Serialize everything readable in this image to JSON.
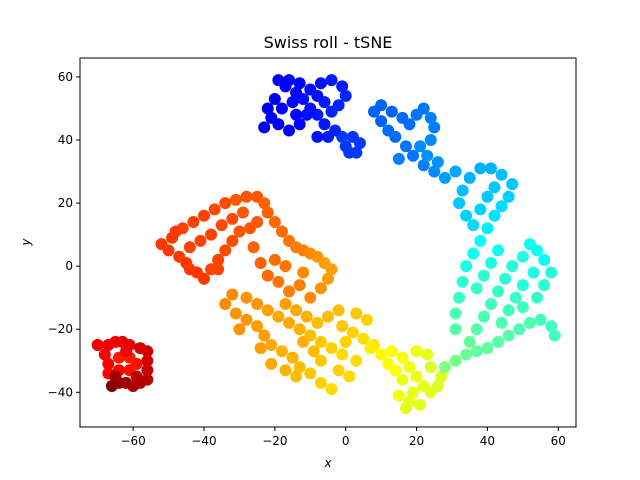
{
  "chart_data": {
    "type": "scatter",
    "title": "Swiss roll - tSNE",
    "xlabel": "x",
    "ylabel": "y",
    "xlim": [
      -75,
      65
    ],
    "ylim": [
      -51,
      66
    ],
    "xticks": [
      -60,
      -40,
      -20,
      0,
      20,
      40,
      60
    ],
    "yticks": [
      -40,
      -20,
      0,
      20,
      40,
      60
    ],
    "xtick_labels": [
      "−60",
      "−40",
      "−20",
      "0",
      "20",
      "40",
      "60"
    ],
    "ytick_labels": [
      "−40",
      "−20",
      "0",
      "20",
      "40",
      "60"
    ],
    "grid": false,
    "legend": "none",
    "colormap": "jet",
    "marker_color_scale": [
      0,
      1
    ],
    "points": [
      {
        "x": -66,
        "y": -38,
        "c": 0.0
      },
      {
        "x": -64,
        "y": -37,
        "c": 0.02
      },
      {
        "x": -62,
        "y": -37,
        "c": 0.03
      },
      {
        "x": -60,
        "y": -38,
        "c": 0.04
      },
      {
        "x": -58,
        "y": -37,
        "c": 0.05
      },
      {
        "x": -56,
        "y": -36,
        "c": 0.06
      },
      {
        "x": -56,
        "y": -33,
        "c": 0.07
      },
      {
        "x": -56,
        "y": -30,
        "c": 0.08
      },
      {
        "x": -56,
        "y": -27,
        "c": 0.08
      },
      {
        "x": -58,
        "y": -26,
        "c": 0.09
      },
      {
        "x": -61,
        "y": -25,
        "c": 0.1
      },
      {
        "x": -63,
        "y": -24,
        "c": 0.1
      },
      {
        "x": -65,
        "y": -24,
        "c": 0.11
      },
      {
        "x": -67,
        "y": -25,
        "c": 0.11
      },
      {
        "x": -70,
        "y": -25,
        "c": 0.11
      },
      {
        "x": -68,
        "y": -28,
        "c": 0.12
      },
      {
        "x": -67,
        "y": -31,
        "c": 0.12
      },
      {
        "x": -67,
        "y": -34,
        "c": 0.13
      },
      {
        "x": -64,
        "y": -33,
        "c": 0.13
      },
      {
        "x": -61,
        "y": -33,
        "c": 0.14
      },
      {
        "x": -59,
        "y": -31,
        "c": 0.14
      },
      {
        "x": -61,
        "y": -29,
        "c": 0.15
      },
      {
        "x": -64,
        "y": -29,
        "c": 0.15
      },
      {
        "x": -59,
        "y": -35,
        "c": 0.06
      },
      {
        "x": -65,
        "y": -35,
        "c": 0.03
      },
      {
        "x": -62,
        "y": -27,
        "c": 0.12
      },
      {
        "x": -52,
        "y": 7,
        "c": 0.18
      },
      {
        "x": -49,
        "y": 9,
        "c": 0.18
      },
      {
        "x": -46,
        "y": 12,
        "c": 0.19
      },
      {
        "x": -43,
        "y": 14,
        "c": 0.19
      },
      {
        "x": -40,
        "y": 16,
        "c": 0.19
      },
      {
        "x": -37,
        "y": 18,
        "c": 0.2
      },
      {
        "x": -34,
        "y": 20,
        "c": 0.2
      },
      {
        "x": -31,
        "y": 21,
        "c": 0.21
      },
      {
        "x": -28,
        "y": 22,
        "c": 0.21
      },
      {
        "x": -25,
        "y": 22,
        "c": 0.21
      },
      {
        "x": -23,
        "y": 20,
        "c": 0.22
      },
      {
        "x": -22,
        "y": 17,
        "c": 0.22
      },
      {
        "x": -20,
        "y": 14,
        "c": 0.23
      },
      {
        "x": -18,
        "y": 11,
        "c": 0.23
      },
      {
        "x": -16,
        "y": 8,
        "c": 0.24
      },
      {
        "x": -14,
        "y": 6,
        "c": 0.25
      },
      {
        "x": -12,
        "y": 5,
        "c": 0.25
      },
      {
        "x": -10,
        "y": 4,
        "c": 0.26
      },
      {
        "x": -8,
        "y": 3,
        "c": 0.27
      },
      {
        "x": -6,
        "y": 1,
        "c": 0.28
      },
      {
        "x": -4,
        "y": -1,
        "c": 0.28
      },
      {
        "x": -50,
        "y": 5,
        "c": 0.18
      },
      {
        "x": -47,
        "y": 3,
        "c": 0.18
      },
      {
        "x": -45,
        "y": 1,
        "c": 0.18
      },
      {
        "x": -42,
        "y": -2,
        "c": 0.18
      },
      {
        "x": -40,
        "y": -4,
        "c": 0.18
      },
      {
        "x": -38,
        "y": -1,
        "c": 0.19
      },
      {
        "x": -36,
        "y": 2,
        "c": 0.19
      },
      {
        "x": -34,
        "y": 5,
        "c": 0.2
      },
      {
        "x": -32,
        "y": 8,
        "c": 0.2
      },
      {
        "x": -30,
        "y": 11,
        "c": 0.21
      },
      {
        "x": -27,
        "y": 12,
        "c": 0.21
      },
      {
        "x": -25,
        "y": 14,
        "c": 0.21
      },
      {
        "x": -38,
        "y": 10,
        "c": 0.19
      },
      {
        "x": -41,
        "y": 8,
        "c": 0.19
      },
      {
        "x": -44,
        "y": 6,
        "c": 0.19
      },
      {
        "x": -35,
        "y": 13,
        "c": 0.2
      },
      {
        "x": -29,
        "y": 17,
        "c": 0.21
      },
      {
        "x": -32,
        "y": 15,
        "c": 0.2
      },
      {
        "x": -36,
        "y": -1,
        "c": 0.19
      },
      {
        "x": -44,
        "y": -1,
        "c": 0.18
      },
      {
        "x": -48,
        "y": 11,
        "c": 0.18
      },
      {
        "x": -26,
        "y": 6,
        "c": 0.22
      },
      {
        "x": -24,
        "y": 1,
        "c": 0.22
      },
      {
        "x": -22,
        "y": -3,
        "c": 0.23
      },
      {
        "x": -20,
        "y": 2,
        "c": 0.23
      },
      {
        "x": -17,
        "y": 0,
        "c": 0.24
      },
      {
        "x": -19,
        "y": -5,
        "c": 0.24
      },
      {
        "x": -16,
        "y": -8,
        "c": 0.25
      },
      {
        "x": -13,
        "y": -6,
        "c": 0.25
      },
      {
        "x": -12,
        "y": -2,
        "c": 0.26
      },
      {
        "x": -10,
        "y": -10,
        "c": 0.26
      },
      {
        "x": -7,
        "y": -7,
        "c": 0.27
      },
      {
        "x": -5,
        "y": -4,
        "c": 0.28
      },
      {
        "x": -34,
        "y": -12,
        "c": 0.26
      },
      {
        "x": -31,
        "y": -15,
        "c": 0.27
      },
      {
        "x": -28,
        "y": -17,
        "c": 0.27
      },
      {
        "x": -25,
        "y": -19,
        "c": 0.28
      },
      {
        "x": -23,
        "y": -22,
        "c": 0.28
      },
      {
        "x": -21,
        "y": -25,
        "c": 0.29
      },
      {
        "x": -18,
        "y": -27,
        "c": 0.3
      },
      {
        "x": -15,
        "y": -29,
        "c": 0.3
      },
      {
        "x": -13,
        "y": -32,
        "c": 0.31
      },
      {
        "x": -10,
        "y": -34,
        "c": 0.32
      },
      {
        "x": -7,
        "y": -37,
        "c": 0.33
      },
      {
        "x": -4,
        "y": -39,
        "c": 0.34
      },
      {
        "x": -32,
        "y": -9,
        "c": 0.26
      },
      {
        "x": -28,
        "y": -10,
        "c": 0.27
      },
      {
        "x": -25,
        "y": -12,
        "c": 0.27
      },
      {
        "x": -22,
        "y": -14,
        "c": 0.28
      },
      {
        "x": -19,
        "y": -16,
        "c": 0.29
      },
      {
        "x": -16,
        "y": -18,
        "c": 0.29
      },
      {
        "x": -13,
        "y": -20,
        "c": 0.3
      },
      {
        "x": -10,
        "y": -22,
        "c": 0.31
      },
      {
        "x": -7,
        "y": -24,
        "c": 0.32
      },
      {
        "x": -4,
        "y": -26,
        "c": 0.33
      },
      {
        "x": -1,
        "y": -28,
        "c": 0.34
      },
      {
        "x": -17,
        "y": -12,
        "c": 0.28
      },
      {
        "x": -14,
        "y": -14,
        "c": 0.29
      },
      {
        "x": -11,
        "y": -16,
        "c": 0.3
      },
      {
        "x": -8,
        "y": -18,
        "c": 0.31
      },
      {
        "x": -5,
        "y": -16,
        "c": 0.31
      },
      {
        "x": -2,
        "y": -14,
        "c": 0.31
      },
      {
        "x": -1,
        "y": -19,
        "c": 0.32
      },
      {
        "x": 2,
        "y": -21,
        "c": 0.33
      },
      {
        "x": 5,
        "y": -23,
        "c": 0.34
      },
      {
        "x": 8,
        "y": -25,
        "c": 0.35
      },
      {
        "x": 3,
        "y": -15,
        "c": 0.32
      },
      {
        "x": 6,
        "y": -17,
        "c": 0.33
      },
      {
        "x": -21,
        "y": -31,
        "c": 0.29
      },
      {
        "x": -17,
        "y": -33,
        "c": 0.3
      },
      {
        "x": -14,
        "y": -35,
        "c": 0.31
      },
      {
        "x": -24,
        "y": -26,
        "c": 0.28
      },
      {
        "x": -30,
        "y": -20,
        "c": 0.27
      },
      {
        "x": -7,
        "y": -30,
        "c": 0.32
      },
      {
        "x": -2,
        "y": -33,
        "c": 0.33
      },
      {
        "x": 1,
        "y": -35,
        "c": 0.34
      },
      {
        "x": 3,
        "y": -30,
        "c": 0.34
      },
      {
        "x": 0,
        "y": -24,
        "c": 0.33
      },
      {
        "x": -9,
        "y": -27,
        "c": 0.31
      },
      {
        "x": -12,
        "y": -24,
        "c": 0.3
      },
      {
        "x": 7,
        "y": -26,
        "c": 0.36
      },
      {
        "x": 10,
        "y": -28,
        "c": 0.37
      },
      {
        "x": 13,
        "y": -27,
        "c": 0.38
      },
      {
        "x": 16,
        "y": -29,
        "c": 0.38
      },
      {
        "x": 18,
        "y": -32,
        "c": 0.39
      },
      {
        "x": 20,
        "y": -35,
        "c": 0.39
      },
      {
        "x": 22,
        "y": -38,
        "c": 0.4
      },
      {
        "x": 24,
        "y": -40,
        "c": 0.4
      },
      {
        "x": 26,
        "y": -38,
        "c": 0.41
      },
      {
        "x": 27,
        "y": -35,
        "c": 0.41
      },
      {
        "x": 24,
        "y": -32,
        "c": 0.41
      },
      {
        "x": 23,
        "y": -28,
        "c": 0.4
      },
      {
        "x": 20,
        "y": -27,
        "c": 0.39
      },
      {
        "x": 16,
        "y": -36,
        "c": 0.39
      },
      {
        "x": 15,
        "y": -41,
        "c": 0.39
      },
      {
        "x": 18,
        "y": -43,
        "c": 0.4
      },
      {
        "x": 21,
        "y": -44,
        "c": 0.4
      },
      {
        "x": 19,
        "y": -40,
        "c": 0.4
      },
      {
        "x": 14,
        "y": -33,
        "c": 0.38
      },
      {
        "x": 12,
        "y": -31,
        "c": 0.37
      },
      {
        "x": 17,
        "y": -45,
        "c": 0.4
      },
      {
        "x": 28,
        "y": -32,
        "c": 0.5
      },
      {
        "x": 31,
        "y": -30,
        "c": 0.51
      },
      {
        "x": 34,
        "y": -28,
        "c": 0.52
      },
      {
        "x": 37,
        "y": -27,
        "c": 0.53
      },
      {
        "x": 40,
        "y": -26,
        "c": 0.53
      },
      {
        "x": 43,
        "y": -24,
        "c": 0.54
      },
      {
        "x": 46,
        "y": -22,
        "c": 0.54
      },
      {
        "x": 49,
        "y": -20,
        "c": 0.55
      },
      {
        "x": 52,
        "y": -18,
        "c": 0.55
      },
      {
        "x": 55,
        "y": -17,
        "c": 0.56
      },
      {
        "x": 58,
        "y": -19,
        "c": 0.56
      },
      {
        "x": 59,
        "y": -22,
        "c": 0.56
      },
      {
        "x": 35,
        "y": -24,
        "c": 0.53
      },
      {
        "x": 37,
        "y": -20,
        "c": 0.54
      },
      {
        "x": 39,
        "y": -16,
        "c": 0.55
      },
      {
        "x": 41,
        "y": -12,
        "c": 0.56
      },
      {
        "x": 43,
        "y": -8,
        "c": 0.57
      },
      {
        "x": 45,
        "y": -4,
        "c": 0.58
      },
      {
        "x": 47,
        "y": 0,
        "c": 0.59
      },
      {
        "x": 50,
        "y": 3,
        "c": 0.6
      },
      {
        "x": 52,
        "y": 7,
        "c": 0.61
      },
      {
        "x": 54,
        "y": 5,
        "c": 0.61
      },
      {
        "x": 56,
        "y": 2,
        "c": 0.62
      },
      {
        "x": 53,
        "y": -2,
        "c": 0.6
      },
      {
        "x": 50,
        "y": -6,
        "c": 0.59
      },
      {
        "x": 48,
        "y": -10,
        "c": 0.57
      },
      {
        "x": 46,
        "y": -14,
        "c": 0.56
      },
      {
        "x": 44,
        "y": -18,
        "c": 0.55
      },
      {
        "x": 50,
        "y": -13,
        "c": 0.56
      },
      {
        "x": 54,
        "y": -10,
        "c": 0.57
      },
      {
        "x": 56,
        "y": -6,
        "c": 0.58
      },
      {
        "x": 58,
        "y": -2,
        "c": 0.59
      },
      {
        "x": 31,
        "y": -20,
        "c": 0.54
      },
      {
        "x": 31,
        "y": -15,
        "c": 0.55
      },
      {
        "x": 32,
        "y": -10,
        "c": 0.57
      },
      {
        "x": 33,
        "y": -5,
        "c": 0.58
      },
      {
        "x": 34,
        "y": 0,
        "c": 0.6
      },
      {
        "x": 36,
        "y": 4,
        "c": 0.61
      },
      {
        "x": 38,
        "y": 8,
        "c": 0.62
      },
      {
        "x": 37,
        "y": -7,
        "c": 0.57
      },
      {
        "x": 39,
        "y": -3,
        "c": 0.58
      },
      {
        "x": 41,
        "y": 1,
        "c": 0.6
      },
      {
        "x": 43,
        "y": 5,
        "c": 0.61
      },
      {
        "x": 40,
        "y": 12,
        "c": 0.64
      },
      {
        "x": 42,
        "y": 16,
        "c": 0.65
      },
      {
        "x": 44,
        "y": 19,
        "c": 0.66
      },
      {
        "x": 46,
        "y": 22,
        "c": 0.67
      },
      {
        "x": 47,
        "y": 26,
        "c": 0.68
      },
      {
        "x": 44,
        "y": 29,
        "c": 0.69
      },
      {
        "x": 41,
        "y": 31,
        "c": 0.7
      },
      {
        "x": 38,
        "y": 31,
        "c": 0.7
      },
      {
        "x": 35,
        "y": 28,
        "c": 0.7
      },
      {
        "x": 33,
        "y": 24,
        "c": 0.69
      },
      {
        "x": 32,
        "y": 20,
        "c": 0.68
      },
      {
        "x": 34,
        "y": 16,
        "c": 0.67
      },
      {
        "x": 36,
        "y": 13,
        "c": 0.66
      },
      {
        "x": 38,
        "y": 18,
        "c": 0.67
      },
      {
        "x": 40,
        "y": 22,
        "c": 0.68
      },
      {
        "x": 42,
        "y": 25,
        "c": 0.68
      },
      {
        "x": 31,
        "y": 30,
        "c": 0.71
      },
      {
        "x": 28,
        "y": 28,
        "c": 0.72
      },
      {
        "x": 25,
        "y": 30,
        "c": 0.74
      },
      {
        "x": 22,
        "y": 32,
        "c": 0.75
      },
      {
        "x": 19,
        "y": 35,
        "c": 0.76
      },
      {
        "x": 17,
        "y": 38,
        "c": 0.76
      },
      {
        "x": 14,
        "y": 41,
        "c": 0.77
      },
      {
        "x": 12,
        "y": 43,
        "c": 0.77
      },
      {
        "x": 10,
        "y": 46,
        "c": 0.78
      },
      {
        "x": 8,
        "y": 49,
        "c": 0.78
      },
      {
        "x": 10,
        "y": 51,
        "c": 0.78
      },
      {
        "x": 13,
        "y": 49,
        "c": 0.78
      },
      {
        "x": 16,
        "y": 47,
        "c": 0.77
      },
      {
        "x": 18,
        "y": 45,
        "c": 0.77
      },
      {
        "x": 20,
        "y": 48,
        "c": 0.76
      },
      {
        "x": 22,
        "y": 50,
        "c": 0.76
      },
      {
        "x": 24,
        "y": 47,
        "c": 0.75
      },
      {
        "x": 25,
        "y": 44,
        "c": 0.75
      },
      {
        "x": 24,
        "y": 40,
        "c": 0.74
      },
      {
        "x": 21,
        "y": 38,
        "c": 0.74
      },
      {
        "x": 23,
        "y": 35,
        "c": 0.73
      },
      {
        "x": 26,
        "y": 33,
        "c": 0.73
      },
      {
        "x": 15,
        "y": 34,
        "c": 0.75
      },
      {
        "x": 4,
        "y": 39,
        "c": 0.82
      },
      {
        "x": 2,
        "y": 41,
        "c": 0.82
      },
      {
        "x": 0,
        "y": 38,
        "c": 0.82
      },
      {
        "x": 1,
        "y": 36,
        "c": 0.82
      },
      {
        "x": 3,
        "y": 36,
        "c": 0.82
      },
      {
        "x": -1,
        "y": 41,
        "c": 0.82
      },
      {
        "x": -3,
        "y": 43,
        "c": 0.84
      },
      {
        "x": -6,
        "y": 45,
        "c": 0.85
      },
      {
        "x": -8,
        "y": 48,
        "c": 0.85
      },
      {
        "x": -10,
        "y": 50,
        "c": 0.86
      },
      {
        "x": -12,
        "y": 53,
        "c": 0.86
      },
      {
        "x": -14,
        "y": 55,
        "c": 0.87
      },
      {
        "x": -17,
        "y": 57,
        "c": 0.87
      },
      {
        "x": -19,
        "y": 59,
        "c": 0.88
      },
      {
        "x": -16,
        "y": 59,
        "c": 0.87
      },
      {
        "x": -13,
        "y": 58,
        "c": 0.87
      },
      {
        "x": -10,
        "y": 56,
        "c": 0.86
      },
      {
        "x": -7,
        "y": 58,
        "c": 0.86
      },
      {
        "x": -4,
        "y": 59,
        "c": 0.85
      },
      {
        "x": -1,
        "y": 57,
        "c": 0.85
      },
      {
        "x": 0,
        "y": 54,
        "c": 0.84
      },
      {
        "x": -2,
        "y": 51,
        "c": 0.84
      },
      {
        "x": -4,
        "y": 49,
        "c": 0.84
      },
      {
        "x": -6,
        "y": 52,
        "c": 0.85
      },
      {
        "x": -8,
        "y": 54,
        "c": 0.86
      },
      {
        "x": -11,
        "y": 48,
        "c": 0.86
      },
      {
        "x": -13,
        "y": 45,
        "c": 0.87
      },
      {
        "x": -16,
        "y": 43,
        "c": 0.88
      },
      {
        "x": -19,
        "y": 45,
        "c": 0.88
      },
      {
        "x": -21,
        "y": 47,
        "c": 0.89
      },
      {
        "x": -23,
        "y": 44,
        "c": 0.89
      },
      {
        "x": -22,
        "y": 50,
        "c": 0.89
      },
      {
        "x": -20,
        "y": 53,
        "c": 0.88
      },
      {
        "x": -18,
        "y": 50,
        "c": 0.88
      },
      {
        "x": -15,
        "y": 52,
        "c": 0.87
      },
      {
        "x": -5,
        "y": 41,
        "c": 0.85
      },
      {
        "x": -8,
        "y": 41,
        "c": 0.86
      },
      {
        "x": -14,
        "y": 48,
        "c": 0.87
      }
    ]
  }
}
